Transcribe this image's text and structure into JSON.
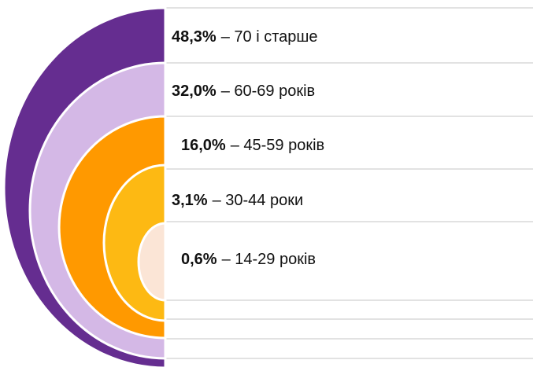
{
  "items": [
    {
      "percent": "48,3%",
      "label": "–  70 і старше"
    },
    {
      "percent": "32,0%",
      "label": "– 60-69 років"
    },
    {
      "percent": "16,0%",
      "label": "– 45-59 років"
    },
    {
      "percent": "3,1%",
      "label": "– 30-44 роки"
    },
    {
      "percent": "0,6%",
      "label": "– 14-29 років"
    }
  ]
}
